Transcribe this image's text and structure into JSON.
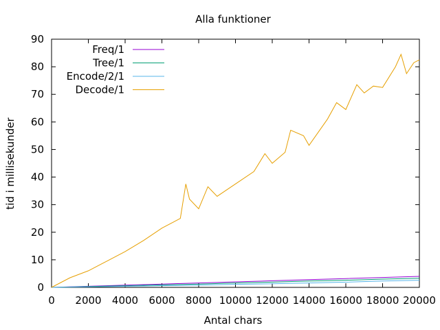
{
  "chart_data": {
    "type": "line",
    "title": "Alla funktioner",
    "xlabel": "Antal chars",
    "ylabel": "tid i millisekunder",
    "xlim": [
      0,
      20000
    ],
    "ylim": [
      0,
      90
    ],
    "x_ticks": [
      0,
      2000,
      4000,
      6000,
      8000,
      10000,
      12000,
      14000,
      16000,
      18000,
      20000
    ],
    "y_ticks": [
      0,
      10,
      20,
      30,
      40,
      50,
      60,
      70,
      80,
      90
    ],
    "legend_position": "top-left",
    "grid": false,
    "series": [
      {
        "name": "Freq/1",
        "color": "#9400d3",
        "x": [
          0,
          2000,
          4000,
          6000,
          8000,
          10000,
          12000,
          14000,
          16000,
          18000,
          20000
        ],
        "y": [
          0.0,
          0.4,
          0.8,
          1.2,
          1.6,
          2.0,
          2.4,
          2.8,
          3.2,
          3.6,
          4.0
        ]
      },
      {
        "name": "Tree/1",
        "color": "#009e73",
        "x": [
          0,
          2000,
          4000,
          6000,
          8000,
          10000,
          12000,
          14000,
          16000,
          18000,
          20000
        ],
        "y": [
          0.0,
          0.3,
          0.6,
          0.9,
          1.2,
          1.6,
          1.9,
          2.3,
          2.6,
          3.0,
          3.3
        ]
      },
      {
        "name": "Encode/2/1",
        "color": "#56b4e9",
        "x": [
          0,
          2000,
          4000,
          6000,
          8000,
          10000,
          12000,
          14000,
          16000,
          18000,
          20000
        ],
        "y": [
          0.0,
          0.2,
          0.4,
          0.6,
          0.8,
          1.1,
          1.3,
          1.6,
          1.9,
          2.3,
          2.6
        ]
      },
      {
        "name": "Decode/1",
        "color": "#e69f00",
        "x": [
          0,
          1000,
          2000,
          3000,
          4000,
          5000,
          6000,
          7000,
          7300,
          7500,
          8000,
          8500,
          9000,
          10000,
          11000,
          11600,
          12000,
          12700,
          13000,
          13700,
          14000,
          15000,
          15500,
          16000,
          16600,
          17000,
          17500,
          18000,
          18700,
          19000,
          19300,
          19700,
          20000
        ],
        "y": [
          0.0,
          3.5,
          6.0,
          9.5,
          13.0,
          17.0,
          21.5,
          25.0,
          37.5,
          32.0,
          28.5,
          36.5,
          33.0,
          37.5,
          42.0,
          48.5,
          45.0,
          49.0,
          57.0,
          55.0,
          51.5,
          61.0,
          67.0,
          64.5,
          73.5,
          70.5,
          73.0,
          72.5,
          80.0,
          84.5,
          77.5,
          81.5,
          82.5
        ]
      }
    ]
  }
}
